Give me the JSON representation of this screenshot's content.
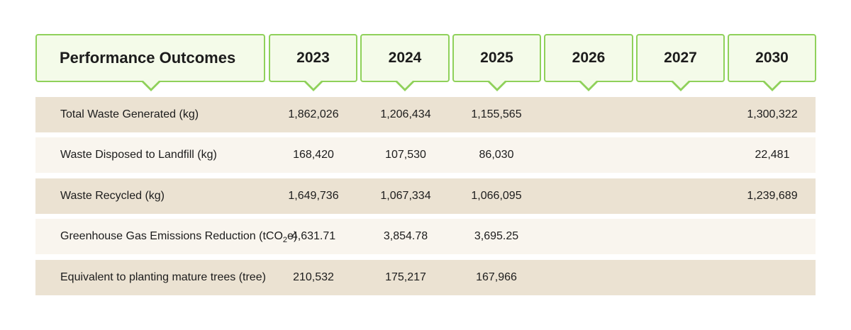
{
  "header": {
    "title": "Performance Outcomes",
    "years": [
      "2023",
      "2024",
      "2025",
      "2026",
      "2027",
      "2030"
    ]
  },
  "rows": [
    {
      "label": "Total Waste Generated (kg)",
      "values": [
        "1,862,026",
        "1,206,434",
        "1,155,565",
        "",
        "",
        "1,300,322"
      ]
    },
    {
      "label": "Waste Disposed to Landfill (kg)",
      "values": [
        "168,420",
        "107,530",
        "86,030",
        "",
        "",
        "22,481"
      ]
    },
    {
      "label": "Waste Recycled (kg)",
      "values": [
        "1,649,736",
        "1,067,334",
        "1,066,095",
        "",
        "",
        "1,239,689"
      ]
    },
    {
      "label": "Greenhouse Gas Emissions Reduction (tCO2e)",
      "values": [
        "4,631.71",
        "3,854.78",
        "3,695.25",
        "",
        "",
        ""
      ]
    },
    {
      "label": "Equivalent to planting mature trees (tree)",
      "values": [
        "210,532",
        "175,217",
        "167,966",
        "",
        "",
        ""
      ]
    }
  ],
  "colors": {
    "header_border": "#8fd15a",
    "header_fill": "#f4fbe9",
    "row_dark": "#ebe2d2",
    "row_light": "#f9f5ee"
  }
}
